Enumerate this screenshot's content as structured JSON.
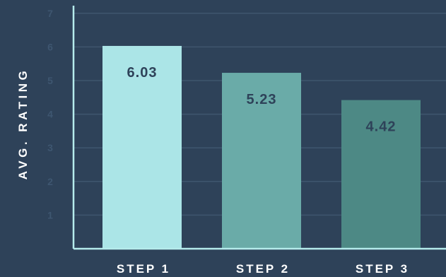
{
  "chart_data": {
    "type": "bar",
    "title": "",
    "xlabel": "",
    "ylabel": "AVG. RATING",
    "categories": [
      "STEP 1",
      "STEP 2",
      "STEP 3"
    ],
    "values": [
      6.03,
      5.23,
      4.42
    ],
    "value_labels": [
      "6.03",
      "5.23",
      "4.42"
    ],
    "ylim": [
      0,
      7
    ],
    "yticks": [
      "1",
      "2",
      "3",
      "4",
      "5",
      "6",
      "7"
    ],
    "grid": true,
    "legend": "none",
    "colors": {
      "background": "#2e4259",
      "bars": [
        "#abe5e7",
        "#6aaba8",
        "#4d8985"
      ],
      "axis": "#b5ecec",
      "grid": "#3f566e",
      "tick_labels": "#3e5670",
      "value_labels": "#2e4259",
      "axis_labels": "#ffffff"
    }
  }
}
